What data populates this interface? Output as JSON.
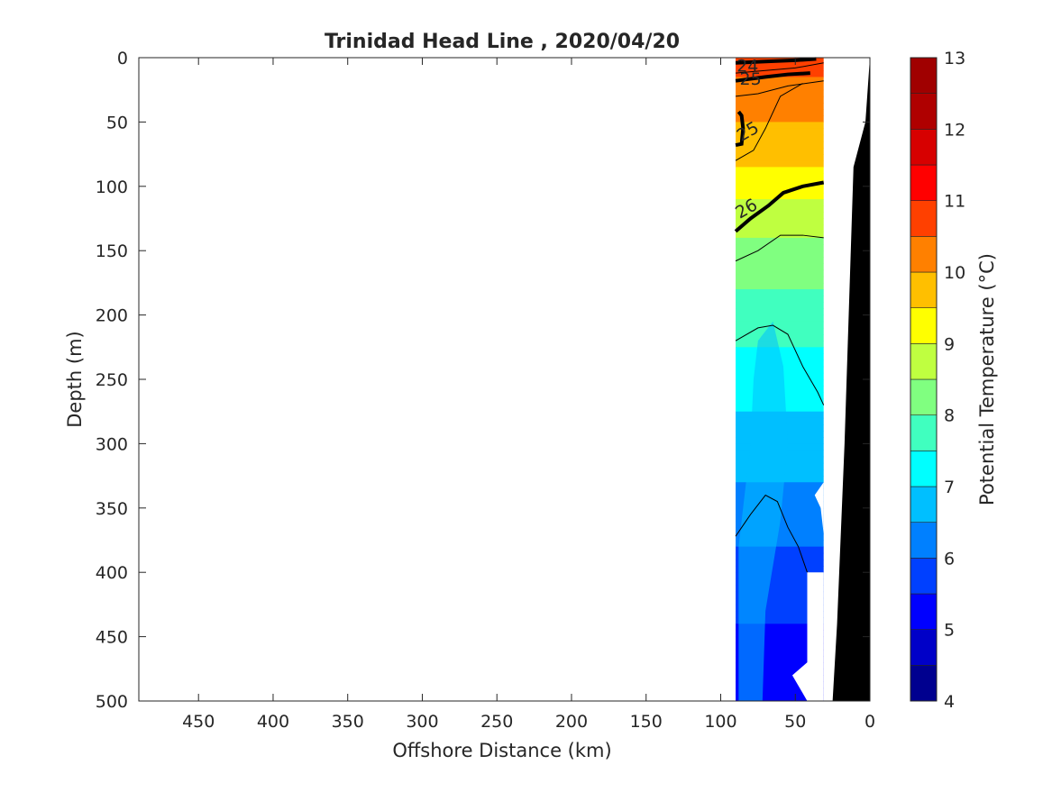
{
  "chart_data": {
    "type": "heatmap",
    "title": "Trinidad Head Line , 2020/04/20",
    "xlabel": "Offshore Distance (km)",
    "ylabel": "Depth (m)",
    "xlim": [
      490,
      0
    ],
    "ylim": [
      0,
      500
    ],
    "x_direction": "reversed",
    "y_direction": "reversed",
    "xticks": [
      450,
      400,
      350,
      300,
      250,
      200,
      150,
      100,
      50,
      0
    ],
    "yticks": [
      0,
      50,
      100,
      150,
      200,
      250,
      300,
      350,
      400,
      450,
      500
    ],
    "data_extent_km": [
      31,
      90
    ],
    "colorbar": {
      "label": "Potential Temperature (°C)",
      "min": 4,
      "max": 13,
      "step": 0.5,
      "ticks": [
        4,
        5,
        6,
        7,
        8,
        9,
        10,
        11,
        12,
        13
      ],
      "colors": [
        "#00008f",
        "#0000c8",
        "#0000ff",
        "#0040ff",
        "#0080ff",
        "#00bfff",
        "#00ffff",
        "#40ffbf",
        "#80ff80",
        "#bfff40",
        "#ffff00",
        "#ffbf00",
        "#ff8000",
        "#ff4000",
        "#ff0000",
        "#d70000",
        "#af0000",
        "#a00000"
      ]
    },
    "temperature_profile": [
      {
        "depth": 0,
        "temp": 11.0
      },
      {
        "depth": 10,
        "temp": 10.6
      },
      {
        "depth": 30,
        "temp": 10.2
      },
      {
        "depth": 60,
        "temp": 9.9
      },
      {
        "depth": 90,
        "temp": 9.4
      },
      {
        "depth": 120,
        "temp": 8.8
      },
      {
        "depth": 160,
        "temp": 8.2
      },
      {
        "depth": 200,
        "temp": 7.8
      },
      {
        "depth": 250,
        "temp": 7.2
      },
      {
        "depth": 300,
        "temp": 6.8
      },
      {
        "depth": 350,
        "temp": 6.3
      },
      {
        "depth": 400,
        "temp": 5.8
      },
      {
        "depth": 450,
        "temp": 5.4
      },
      {
        "depth": 500,
        "temp": 5.0
      }
    ],
    "density_contour_labels": [
      {
        "text": "24",
        "x": 82,
        "depth": 6
      },
      {
        "text": "25",
        "x": 80,
        "depth": 16
      },
      {
        "text": "25",
        "x": 82,
        "depth": 57
      },
      {
        "text": "26",
        "x": 83,
        "depth": 117
      }
    ],
    "bathymetry": [
      {
        "x": 0,
        "depth": 0
      },
      {
        "x": 3,
        "depth": 50
      },
      {
        "x": 11,
        "depth": 85
      },
      {
        "x": 17,
        "depth": 300
      },
      {
        "x": 22,
        "depth": 440
      },
      {
        "x": 25,
        "depth": 500
      }
    ]
  }
}
